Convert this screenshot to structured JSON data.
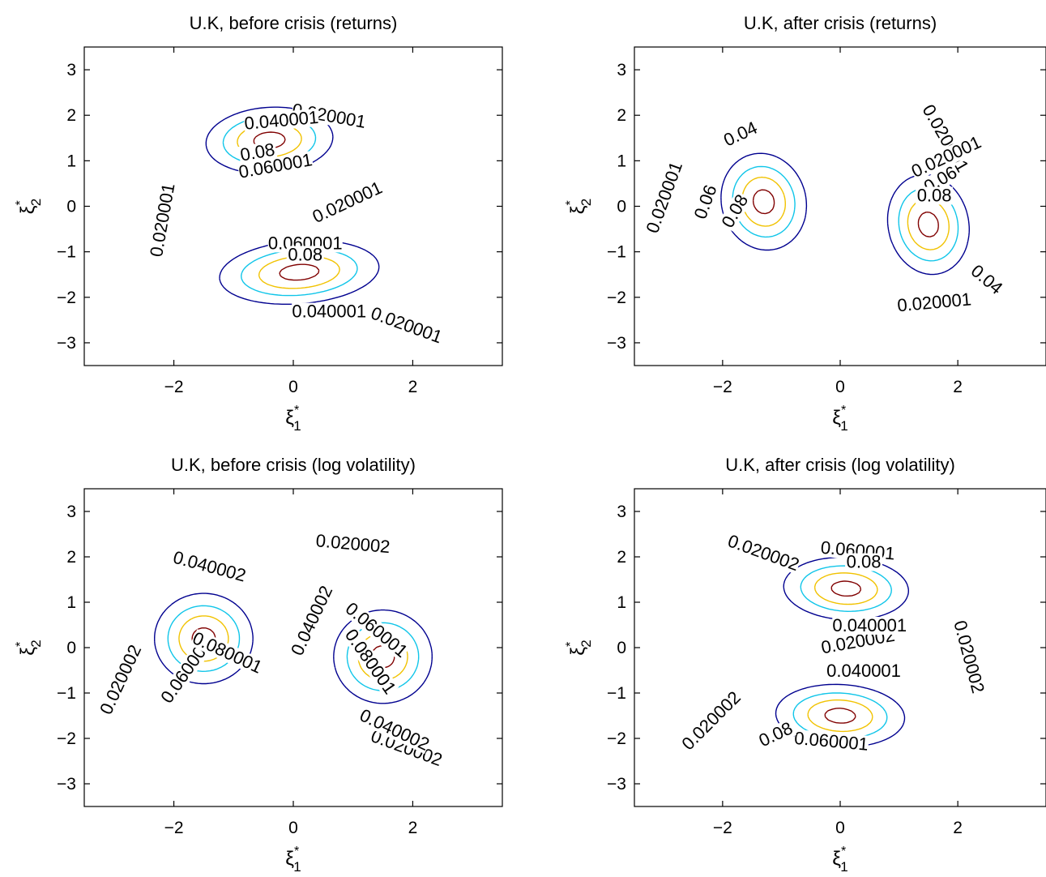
{
  "chart_data": [
    {
      "type": "contour",
      "title": "U.K, before crisis (returns)",
      "xlabel": "ξ",
      "xlabel_sup": "*",
      "xlabel_sub": "1",
      "ylabel": "ξ",
      "ylabel_sup": "*",
      "ylabel_sub": "2",
      "xlim": [
        -3.5,
        3.5
      ],
      "ylim": [
        -3.5,
        3.5
      ],
      "xticks": [
        "−2",
        "0",
        "2"
      ],
      "yticks": [
        "3",
        "2",
        "1",
        "0",
        "−1",
        "−2",
        "−3"
      ],
      "levels": [
        {
          "name": "0.020001",
          "color": "#00008f",
          "labels": [
            "0.020001",
            "0.020001",
            "0.020001",
            "0.020001"
          ]
        },
        {
          "name": "0.040001",
          "color": "#0fc5e9",
          "labels": [
            "0.040001",
            "0.040001"
          ]
        },
        {
          "name": "0.060001",
          "color": "#f1c200",
          "labels": [
            "0.060001",
            "0.060001"
          ]
        },
        {
          "name": "0.08",
          "color": "#800000",
          "labels": [
            "0.08",
            "0.08"
          ]
        }
      ],
      "peaks": [
        {
          "x": -0.4,
          "y": 1.45,
          "value": 0.08
        },
        {
          "x": 0.1,
          "y": -1.45,
          "value": 0.08
        }
      ]
    },
    {
      "type": "contour",
      "title": "U.K, after crisis (returns)",
      "xlabel": "ξ",
      "xlabel_sup": "*",
      "xlabel_sub": "1",
      "ylabel": "ξ",
      "ylabel_sup": "*",
      "ylabel_sub": "2",
      "xlim": [
        -3.5,
        3.5
      ],
      "ylim": [
        -3.5,
        3.5
      ],
      "xticks": [
        "−2",
        "0",
        "2"
      ],
      "yticks": [
        "3",
        "2",
        "1",
        "0",
        "−1",
        "−2",
        "−3"
      ],
      "levels": [
        {
          "name": "0.020001",
          "color": "#00008f",
          "labels": [
            "0.020001",
            "0.020001",
            "0.020001",
            "0.020001"
          ]
        },
        {
          "name": "0.04",
          "color": "#0fc5e9",
          "labels": [
            "0.04",
            "0.04"
          ]
        },
        {
          "name": "0.06",
          "color": "#f1c200",
          "labels": [
            "0.06",
            "0.06"
          ]
        },
        {
          "name": "0.08",
          "color": "#800000",
          "labels": [
            "0.08",
            "0.08"
          ]
        }
      ],
      "peaks": [
        {
          "x": -1.3,
          "y": 0.1,
          "value": 0.08
        },
        {
          "x": 1.5,
          "y": -0.4,
          "value": 0.08
        }
      ]
    },
    {
      "type": "contour",
      "title": "U.K, before crisis (log volatility)",
      "xlabel": "ξ",
      "xlabel_sup": "*",
      "xlabel_sub": "1",
      "ylabel": "ξ",
      "ylabel_sup": "*",
      "ylabel_sub": "2",
      "xlim": [
        -3.5,
        3.5
      ],
      "ylim": [
        -3.5,
        3.5
      ],
      "xticks": [
        "−2",
        "0",
        "2"
      ],
      "yticks": [
        "3",
        "2",
        "1",
        "0",
        "−1",
        "−2",
        "−3"
      ],
      "levels": [
        {
          "name": "0.020002",
          "color": "#00008f",
          "labels": [
            "0.020002",
            "0.020002",
            "0.020002"
          ]
        },
        {
          "name": "0.040002",
          "color": "#0fc5e9",
          "labels": [
            "0.040002",
            "0.040002",
            "0.040002"
          ]
        },
        {
          "name": "0.060001",
          "color": "#f1c200",
          "labels": [
            "0.060001",
            "0.060001"
          ]
        },
        {
          "name": "0.080001",
          "color": "#800000",
          "labels": [
            "0.080001",
            "0.080001"
          ]
        }
      ],
      "peaks": [
        {
          "x": -1.5,
          "y": 0.2,
          "value": 0.08
        },
        {
          "x": 1.5,
          "y": -0.2,
          "value": 0.08
        }
      ]
    },
    {
      "type": "contour",
      "title": "U.K, after crisis (log volatility)",
      "xlabel": "ξ",
      "xlabel_sup": "*",
      "xlabel_sub": "1",
      "ylabel": "ξ",
      "ylabel_sup": "*",
      "ylabel_sub": "2",
      "xlim": [
        -3.5,
        3.5
      ],
      "ylim": [
        -3.5,
        3.5
      ],
      "xticks": [
        "−2",
        "0",
        "2"
      ],
      "yticks": [
        "3",
        "2",
        "1",
        "0",
        "−1",
        "−2",
        "−3"
      ],
      "levels": [
        {
          "name": "0.020002",
          "color": "#00008f",
          "labels": [
            "0.020002",
            "0.020002",
            "0.020002",
            "0.020002"
          ]
        },
        {
          "name": "0.040001",
          "color": "#0fc5e9",
          "labels": [
            "0.040001",
            "0.040001"
          ]
        },
        {
          "name": "0.060001",
          "color": "#f1c200",
          "labels": [
            "0.060001",
            "0.060001"
          ]
        },
        {
          "name": "0.08",
          "color": "#800000",
          "labels": [
            "0.08",
            "0.08"
          ]
        }
      ],
      "peaks": [
        {
          "x": 0.1,
          "y": 1.3,
          "value": 0.08
        },
        {
          "x": 0.0,
          "y": -1.5,
          "value": 0.08
        }
      ]
    }
  ]
}
